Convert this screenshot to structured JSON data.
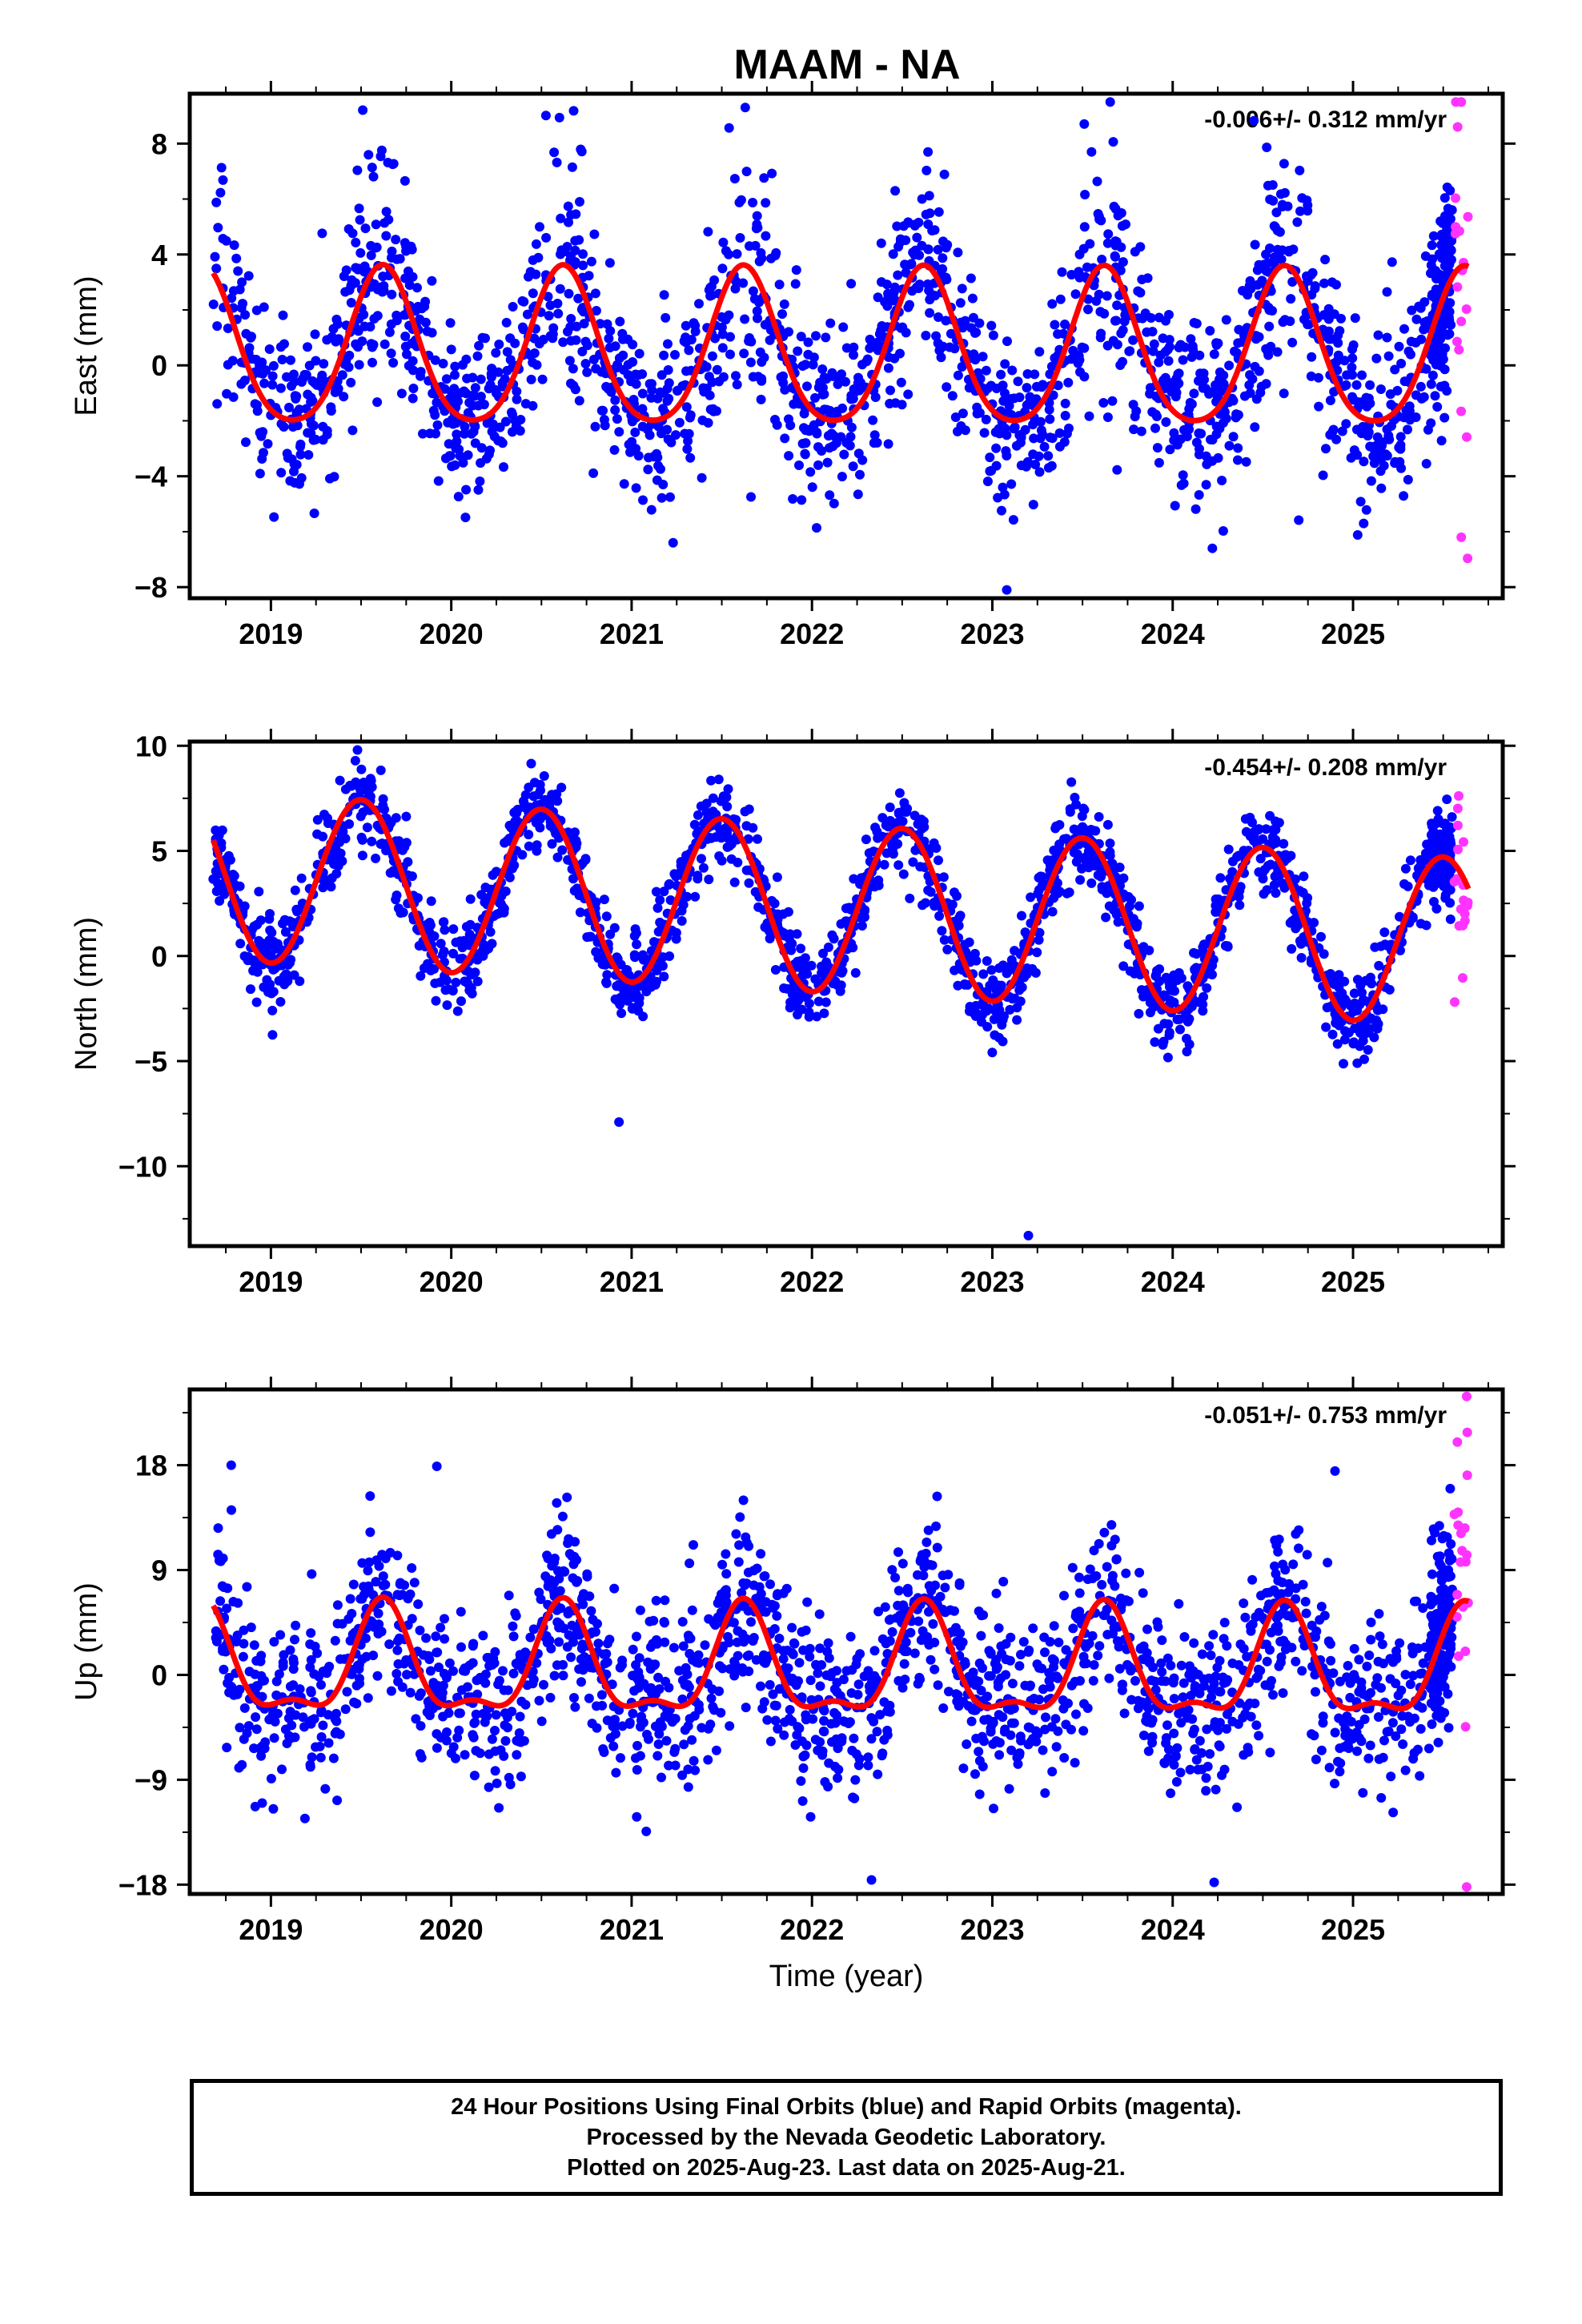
{
  "title": "MAAM - NA",
  "colors": {
    "final_orbits": "#0000ff",
    "rapid_orbits": "#ff33ff",
    "fit_line": "#ff0000",
    "frame": "#000000"
  },
  "chart_data": [
    {
      "type": "scatter",
      "panel": "east",
      "ylabel": "East (mm)",
      "xlabel": "",
      "rate": "-0.006+/- 0.312 mm/yr",
      "xlim": [
        2018.55,
        2025.83
      ],
      "ylim": [
        -8.4,
        9.8
      ],
      "yticks": [
        -8,
        -4,
        0,
        4,
        8
      ],
      "yticklabels": [
        "−8",
        "−4",
        "0",
        "4",
        "8"
      ],
      "xticks": [
        2019,
        2020,
        2021,
        2022,
        2023,
        2024,
        2025
      ],
      "xticklabels": [
        "2019",
        "2020",
        "2021",
        "2022",
        "2023",
        "2024",
        "2025"
      ],
      "data_start": 2018.68,
      "final_end": 2025.55,
      "rapid_start": 2025.56,
      "data_end": 2025.64,
      "fit": {
        "mean": 0.4,
        "amplitude": 2.8,
        "peak_phase": 0.62,
        "harmonic": 0.15,
        "trend": -0.006
      },
      "scatter_sd": 1.6,
      "seasonal_bursts": [
        {
          "phase": 0.62,
          "amp": 1.5
        }
      ],
      "outliers": [
        {
          "x": 2021.63,
          "y": 9.3
        },
        {
          "x": 2023.08,
          "y": -8.1
        },
        {
          "x": 2023.55,
          "y": 7.7
        },
        {
          "x": 2021.23,
          "y": -6.4
        },
        {
          "x": 2024.22,
          "y": -6.6
        },
        {
          "x": 2025.6,
          "y": -6.2
        },
        {
          "x": 2025.58,
          "y": 8.6
        }
      ]
    },
    {
      "type": "scatter",
      "panel": "north",
      "ylabel": "North (mm)",
      "xlabel": "",
      "rate": "-0.454+/- 0.208 mm/yr",
      "xlim": [
        2018.55,
        2025.83
      ],
      "ylim": [
        -13.8,
        10.2
      ],
      "yticks": [
        -10,
        -5,
        0,
        5,
        10
      ],
      "yticklabels": [
        "−10",
        "−5",
        "0",
        "5",
        "10"
      ],
      "xticks": [
        2019,
        2020,
        2021,
        2022,
        2023,
        2024,
        2025
      ],
      "xticklabels": [
        "2019",
        "2020",
        "2021",
        "2022",
        "2023",
        "2024",
        "2025"
      ],
      "data_start": 2018.68,
      "final_end": 2025.55,
      "rapid_start": 2025.56,
      "data_end": 2025.64,
      "fit": {
        "mean": 2.3,
        "amplitude": 4.0,
        "peak_phase": 0.5,
        "harmonic": 0.0,
        "trend": -0.454
      },
      "scatter_sd": 1.0,
      "seasonal_bursts": [],
      "outliers": [
        {
          "x": 2019.48,
          "y": 9.8
        },
        {
          "x": 2020.93,
          "y": -7.9
        },
        {
          "x": 2023.2,
          "y": -13.3
        }
      ]
    },
    {
      "type": "scatter",
      "panel": "up",
      "ylabel": "Up (mm)",
      "xlabel": "Time (year)",
      "rate": "-0.051+/- 0.753 mm/yr",
      "xlim": [
        2018.55,
        2025.83
      ],
      "ylim": [
        -18.8,
        24.5
      ],
      "yticks": [
        -18,
        -9,
        0,
        9,
        18
      ],
      "yticklabels": [
        "−18",
        "−9",
        "0",
        "9",
        "18"
      ],
      "xticks": [
        2019,
        2020,
        2021,
        2022,
        2023,
        2024,
        2025
      ],
      "xticklabels": [
        "2019",
        "2020",
        "2021",
        "2022",
        "2023",
        "2024",
        "2025"
      ],
      "data_start": 2018.68,
      "final_end": 2025.55,
      "rapid_start": 2025.56,
      "data_end": 2025.64,
      "fit": {
        "mean": 0.4,
        "amplitude": 4.4,
        "peak_phase": 0.62,
        "harmonic": 0.4,
        "trend": -0.051
      },
      "scatter_sd": 3.8,
      "seasonal_bursts": [],
      "outliers": [
        {
          "x": 2018.78,
          "y": 18.0
        },
        {
          "x": 2019.92,
          "y": 17.9
        },
        {
          "x": 2024.9,
          "y": 17.5
        },
        {
          "x": 2022.33,
          "y": -17.6
        },
        {
          "x": 2024.23,
          "y": -17.8
        },
        {
          "x": 2025.63,
          "y": 23.9
        },
        {
          "x": 2025.63,
          "y": -18.2
        },
        {
          "x": 2025.62,
          "y": 12.6
        }
      ]
    }
  ],
  "footer": {
    "line1": "24 Hour Positions Using Final Orbits (blue) and Rapid Orbits (magenta).",
    "line2": "Processed by the Nevada Geodetic Laboratory.",
    "line3": "Plotted on 2025-Aug-23. Last data on 2025-Aug-21."
  }
}
